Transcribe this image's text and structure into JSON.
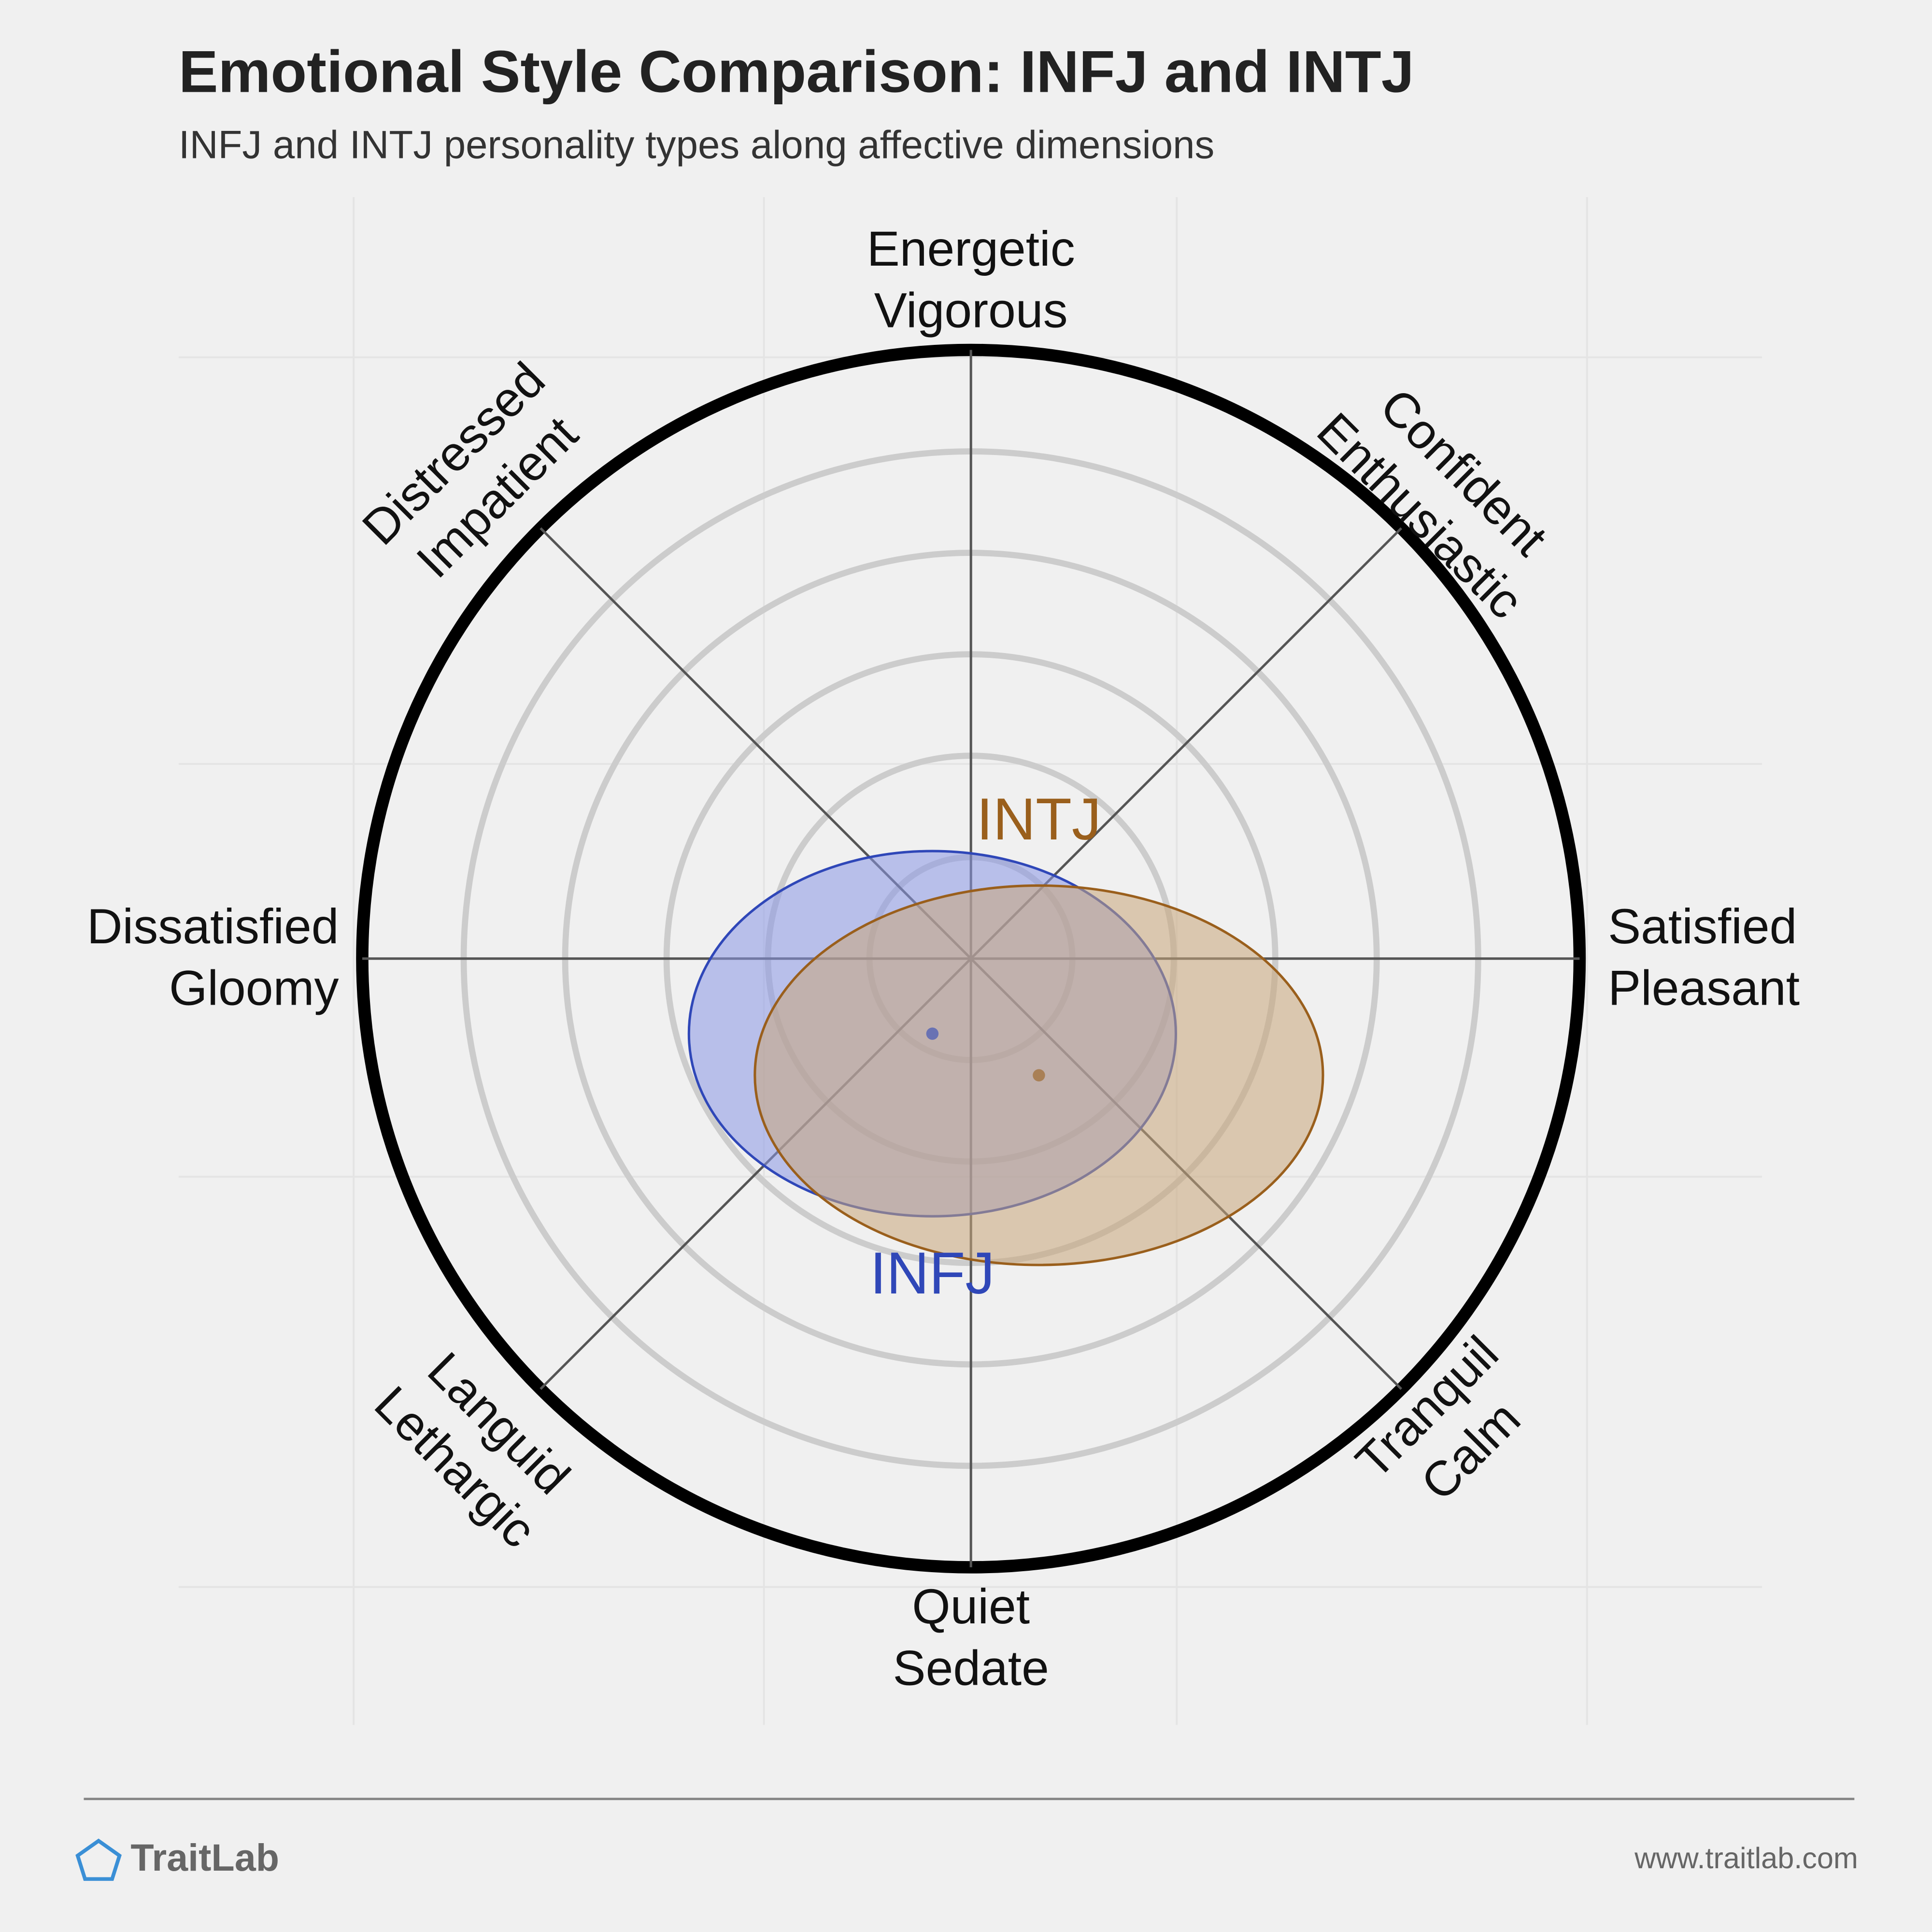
{
  "chart_data": {
    "type": "circumplex",
    "title": "Emotional Style Comparison: INFJ and INTJ",
    "subtitle": "INFJ and INTJ personality types along affective dimensions",
    "axis_labels": [
      [
        "Energetic",
        "Vigorous"
      ],
      [
        "Confident",
        "Enthusiastic"
      ],
      [
        "Satisfied",
        "Pleasant"
      ],
      [
        "Tranquil",
        "Calm"
      ],
      [
        "Quiet",
        "Sedate"
      ],
      [
        "Languid",
        "Lethargic"
      ],
      [
        "Dissatisfied",
        "Gloomy"
      ],
      [
        "Distressed",
        "Impatient"
      ]
    ],
    "rlim": [
      0,
      6
    ],
    "rticks": [
      1,
      2,
      3,
      4,
      5,
      6
    ],
    "series": [
      {
        "name": "INFJ",
        "color": "#2f47b8",
        "fill": "#8a98e6",
        "x": -0.38,
        "y": -0.74,
        "rx": 2.4,
        "ry": 1.8
      },
      {
        "name": "INTJ",
        "color": "#9a5f1c",
        "fill": "#c9a67a",
        "x": 0.67,
        "y": -1.15,
        "rx": 2.8,
        "ry": 1.87
      }
    ]
  },
  "footer": {
    "brand": "TraitLab",
    "url": "www.traitlab.com"
  }
}
